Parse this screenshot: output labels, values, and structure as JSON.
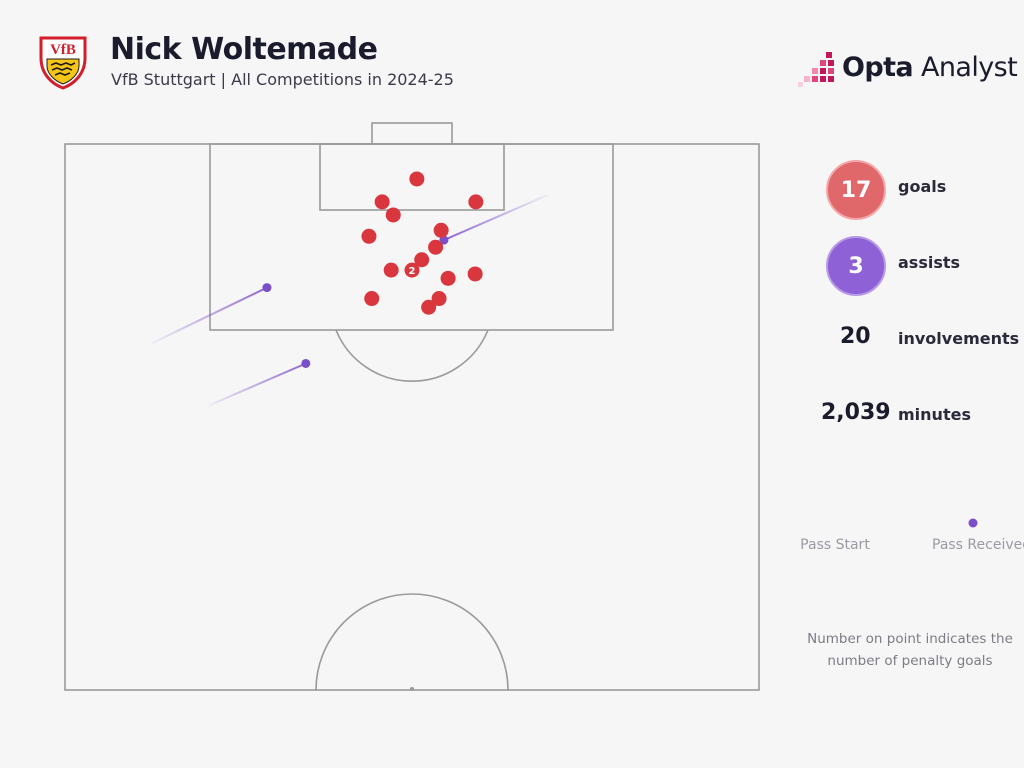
{
  "header": {
    "player_name": "Nick Woltemade",
    "subtitle": "VfB Stuttgart | All Competitions in 2024-25",
    "crest_text": "VfB"
  },
  "brand": {
    "name_bold": "Opta",
    "name_regular": " Analyst",
    "accent_color": "#c2185b"
  },
  "stats": {
    "goals_value": "17",
    "goals_label": "goals",
    "assists_value": "3",
    "assists_label": "assists",
    "involvements_value": "20",
    "involvements_label": "involvements",
    "minutes_value": "2,039",
    "minutes_label": "minutes"
  },
  "legend": {
    "start_label": "Pass Start",
    "end_label": "Pass Received",
    "footnote": "Number on point indicates the number of penalty goals"
  },
  "colors": {
    "goal": "#d9363e",
    "assist": "#7b4fc9",
    "pitch_line": "#9a9a9a"
  },
  "chart_data": {
    "type": "scatter",
    "pitch": "half pitch, attacking upwards",
    "coordinate_units": "percent of the attacking half-pitch width and depth (y = distance from goal line)",
    "series": [
      {
        "name": "goals",
        "points": [
          {
            "x": 50.7,
            "y": 6.4
          },
          {
            "x": 45.7,
            "y": 10.6
          },
          {
            "x": 59.2,
            "y": 10.6
          },
          {
            "x": 47.3,
            "y": 13.0
          },
          {
            "x": 43.8,
            "y": 16.9
          },
          {
            "x": 54.2,
            "y": 15.8
          },
          {
            "x": 53.4,
            "y": 18.9
          },
          {
            "x": 51.4,
            "y": 21.2
          },
          {
            "x": 47.0,
            "y": 23.1
          },
          {
            "x": 50.0,
            "y": 23.1,
            "penalty_goals": 2,
            "label": "2"
          },
          {
            "x": 55.2,
            "y": 24.6
          },
          {
            "x": 59.1,
            "y": 23.8
          },
          {
            "x": 44.2,
            "y": 28.3
          },
          {
            "x": 53.9,
            "y": 28.3
          },
          {
            "x": 52.4,
            "y": 29.9
          }
        ]
      },
      {
        "name": "assists",
        "passes": [
          {
            "start": {
              "x": 69.6,
              "y": 9.3
            },
            "end": {
              "x": 54.6,
              "y": 17.6
            }
          },
          {
            "start": {
              "x": 12.5,
              "y": 36.5
            },
            "end": {
              "x": 29.1,
              "y": 26.3
            }
          },
          {
            "start": {
              "x": 20.7,
              "y": 47.9
            },
            "end": {
              "x": 34.7,
              "y": 40.2
            }
          }
        ]
      }
    ]
  }
}
